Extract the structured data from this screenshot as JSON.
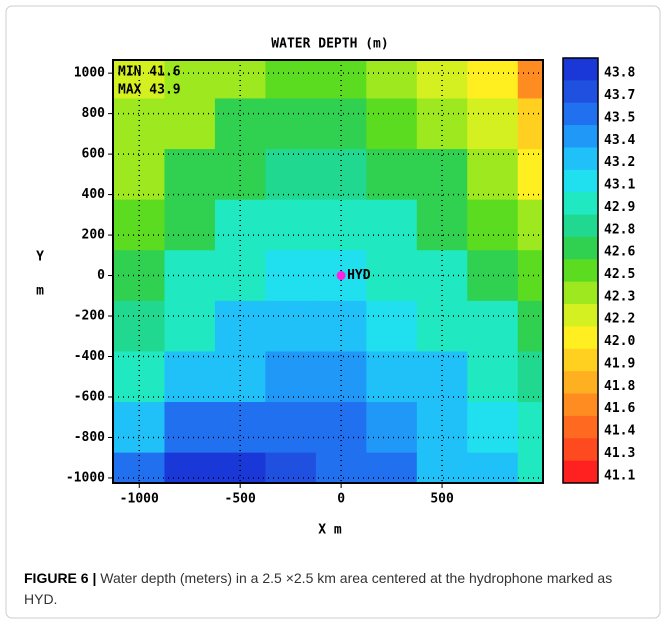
{
  "chart_data": {
    "type": "contour",
    "title": "WATER DEPTH (m)",
    "annotations": [
      "MIN 41.6",
      "MAX 43.9"
    ],
    "ylabel": [
      "Y",
      "m"
    ],
    "xlabel": "X m",
    "xlim": [
      -1130,
      1000
    ],
    "ylim": [
      -1025,
      1065
    ],
    "xticks": [
      -1000,
      -500,
      0,
      500
    ],
    "yticks": [
      1000,
      800,
      600,
      400,
      200,
      0,
      -200,
      -400,
      -600,
      -800,
      -1000
    ],
    "grid": true,
    "x": [
      -1000,
      -750,
      -500,
      -250,
      0,
      250,
      500,
      750,
      1000
    ],
    "y": [
      1000,
      750,
      500,
      250,
      0,
      -250,
      -500,
      -750,
      -1000
    ],
    "z": [
      [
        42.2,
        42.3,
        42.4,
        42.5,
        42.5,
        42.4,
        42.2,
        42.0,
        41.7
      ],
      [
        42.3,
        42.4,
        42.6,
        42.6,
        42.6,
        42.5,
        42.4,
        42.2,
        41.9
      ],
      [
        42.4,
        42.6,
        42.7,
        42.8,
        42.8,
        42.7,
        42.6,
        42.4,
        42.1
      ],
      [
        42.5,
        42.7,
        42.9,
        43.0,
        43.0,
        42.9,
        42.7,
        42.5,
        42.3
      ],
      [
        42.6,
        42.9,
        43.0,
        43.1,
        43.1,
        43.0,
        42.9,
        42.7,
        42.5
      ],
      [
        42.8,
        43.0,
        43.2,
        43.2,
        43.2,
        43.1,
        43.0,
        42.9,
        42.6
      ],
      [
        43.0,
        43.2,
        43.3,
        43.4,
        43.4,
        43.3,
        43.2,
        43.0,
        42.8
      ],
      [
        43.3,
        43.5,
        43.6,
        43.6,
        43.5,
        43.4,
        43.3,
        43.1,
        42.9
      ],
      [
        43.5,
        43.8,
        43.8,
        43.7,
        43.6,
        43.5,
        43.3,
        43.2,
        43.0
      ]
    ],
    "colorbar": {
      "levels": [
        43.8,
        43.7,
        43.5,
        43.4,
        43.2,
        43.1,
        42.9,
        42.8,
        42.6,
        42.5,
        42.3,
        42.2,
        {
          "value": 42,
          "label": "42.0"
        },
        41.9,
        41.8,
        41.6,
        41.4,
        41.3,
        41.1
      ],
      "colors": [
        "#1a38d8",
        "#2050e0",
        "#2070f0",
        "#2098f8",
        "#20c0f8",
        "#20e0f0",
        "#20e8c0",
        "#20d890",
        "#30d050",
        "#5cdc20",
        "#9ee820",
        "#d4f020",
        "#ffee20",
        "#ffd020",
        "#ffb020",
        "#ff8c20",
        "#ff6a20",
        "#ff4a20",
        "#ff2020"
      ]
    },
    "markers": [
      {
        "label": "HYD",
        "x": 0,
        "y": 0,
        "color": "#ff20e0"
      }
    ]
  },
  "caption": {
    "label": "FIGURE 6 |",
    "text": "Water depth (meters) in a 2.5 ×2.5 km area centered at the hydrophone marked as HYD."
  }
}
